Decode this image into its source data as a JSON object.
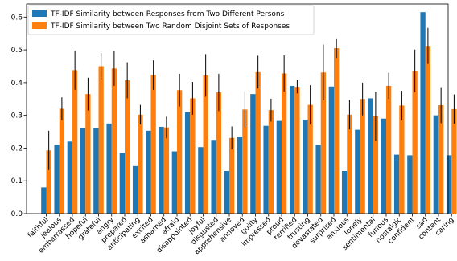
{
  "chart_data": {
    "type": "bar",
    "categories": [
      "faithful",
      "jealous",
      "embarrassed",
      "hopeful",
      "grateful",
      "angry",
      "prepared",
      "anticipating",
      "excited",
      "ashamed",
      "afraid",
      "disappointed",
      "joyful",
      "disgusted",
      "apprehensive",
      "annoyed",
      "guilty",
      "impressed",
      "proud",
      "terrified",
      "trusting",
      "devastated",
      "surprised",
      "anxious",
      "lonely",
      "sentimental",
      "furious",
      "nostalgic",
      "confident",
      "sad",
      "content",
      "caring"
    ],
    "series": [
      {
        "name": "TF-IDF Similarity between Responses from Two Different Persons",
        "color": "#1f77b4",
        "values": [
          0.08,
          0.21,
          0.22,
          0.26,
          0.26,
          0.275,
          0.185,
          0.145,
          0.253,
          0.265,
          0.19,
          0.31,
          0.203,
          0.225,
          0.13,
          0.235,
          0.365,
          0.268,
          0.283,
          0.39,
          0.287,
          0.21,
          0.388,
          0.13,
          0.256,
          0.352,
          0.29,
          0.18,
          0.178,
          0.615,
          0.3,
          0.178
        ]
      },
      {
        "name": "TF-IDF Similarity between Two Random Disjoint Sets of Responses",
        "color": "#ff7f0e",
        "values": [
          0.193,
          0.32,
          0.438,
          0.365,
          0.45,
          0.443,
          0.407,
          0.302,
          0.423,
          0.263,
          0.377,
          0.352,
          0.422,
          0.37,
          0.231,
          0.318,
          0.432,
          0.316,
          0.428,
          0.387,
          0.332,
          0.431,
          0.505,
          0.302,
          0.35,
          0.297,
          0.39,
          0.33,
          0.436,
          0.512,
          0.331,
          0.319
        ],
        "errors": [
          0.06,
          0.035,
          0.06,
          0.05,
          0.04,
          0.053,
          0.055,
          0.03,
          0.045,
          0.033,
          0.05,
          0.05,
          0.065,
          0.057,
          0.035,
          0.055,
          0.05,
          0.035,
          0.055,
          0.02,
          0.06,
          0.085,
          0.03,
          0.045,
          0.05,
          0.075,
          0.04,
          0.045,
          0.065,
          0.055,
          0.055,
          0.045
        ]
      }
    ],
    "yticks": [
      "0.0",
      "0.1",
      "0.2",
      "0.3",
      "0.4",
      "0.5",
      "0.6"
    ],
    "ylim": [
      0,
      0.64
    ],
    "legend_position": "top-left",
    "grid": false
  }
}
